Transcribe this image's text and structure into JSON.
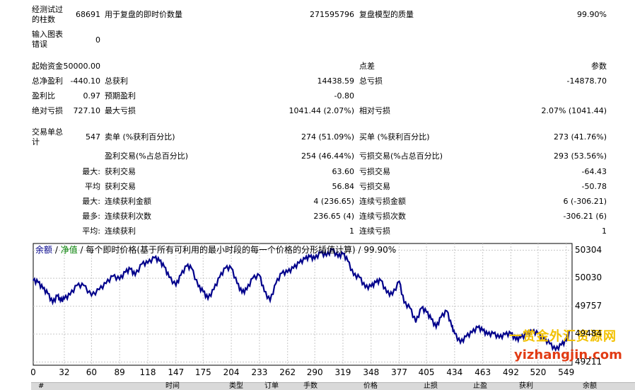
{
  "stats": [
    {
      "id": "bars_label",
      "text": "经测试过\n的柱数"
    },
    {
      "id": "bars_value",
      "text": "68691"
    },
    {
      "id": "ticks_label",
      "text": "用于复盘的即时价数量"
    },
    {
      "id": "ticks_value",
      "text": "271595796"
    },
    {
      "id": "quality_label",
      "text": "复盘模型的质量"
    },
    {
      "id": "quality_value",
      "text": "99.90%"
    },
    {
      "id": "errors_label",
      "text": "输入图表\n错误"
    },
    {
      "id": "errors_value",
      "text": "0"
    },
    {
      "id": "deposit_label",
      "text": "起始资金"
    },
    {
      "id": "deposit_value",
      "text": "50000.00"
    },
    {
      "id": "spread_label",
      "text": "点差"
    },
    {
      "id": "spread_value",
      "text": "参数"
    },
    {
      "id": "netprofit_label",
      "text": "总净盈利"
    },
    {
      "id": "netprofit_value",
      "text": "-440.10"
    },
    {
      "id": "grossprofit_label",
      "text": "总获利"
    },
    {
      "id": "grossprofit_value",
      "text": "14438.59"
    },
    {
      "id": "grossloss_label",
      "text": "总亏损"
    },
    {
      "id": "grossloss_value",
      "text": "-14878.70"
    },
    {
      "id": "pf_label",
      "text": "盈利比"
    },
    {
      "id": "pf_value",
      "text": "0.97"
    },
    {
      "id": "expected_label",
      "text": "预期盈利"
    },
    {
      "id": "expected_value",
      "text": "-0.80"
    },
    {
      "id": "absdd_label",
      "text": "绝对亏损"
    },
    {
      "id": "absdd_value",
      "text": "727.10"
    },
    {
      "id": "maxdd_label",
      "text": "最大亏损"
    },
    {
      "id": "maxdd_value",
      "text": "1041.44 (2.07%)"
    },
    {
      "id": "reldd_label",
      "text": "相对亏损"
    },
    {
      "id": "reldd_value",
      "text": "2.07% (1041.44)"
    },
    {
      "id": "trades_label",
      "text": "交易单总\n计"
    },
    {
      "id": "trades_value",
      "text": "547"
    },
    {
      "id": "short_label",
      "text": "卖单 (%获利百分比)"
    },
    {
      "id": "short_value",
      "text": "274 (51.09%)"
    },
    {
      "id": "long_label",
      "text": "买单 (%获利百分比)"
    },
    {
      "id": "long_value",
      "text": "273 (41.76%)"
    },
    {
      "id": "profittrades_label",
      "text": "盈利交易(%占总百分比)"
    },
    {
      "id": "profittrades_value",
      "text": "254 (46.44%)"
    },
    {
      "id": "losstrades_label",
      "text": "亏损交易(%占总百分比)"
    },
    {
      "id": "losstrades_value",
      "text": "293 (53.56%)"
    },
    {
      "id": "largest_head",
      "text": "最大:"
    },
    {
      "id": "largest_profit_label",
      "text": "获利交易"
    },
    {
      "id": "largest_profit_value",
      "text": "63.60"
    },
    {
      "id": "largest_loss_label",
      "text": "亏损交易"
    },
    {
      "id": "largest_loss_value",
      "text": "-64.43"
    },
    {
      "id": "avg_head",
      "text": "平均"
    },
    {
      "id": "avg_profit_label",
      "text": "获利交易"
    },
    {
      "id": "avg_profit_value",
      "text": "56.84"
    },
    {
      "id": "avg_loss_label",
      "text": "亏损交易"
    },
    {
      "id": "avg_loss_value",
      "text": "-50.78"
    },
    {
      "id": "maxcons_head",
      "text": "最大:"
    },
    {
      "id": "maxcons_win_label",
      "text": "连续获利金额"
    },
    {
      "id": "maxcons_win_value",
      "text": "4 (236.65)"
    },
    {
      "id": "maxcons_loss_label",
      "text": "连续亏损金额"
    },
    {
      "id": "maxcons_loss_value",
      "text": "6 (-306.21)"
    },
    {
      "id": "most_head",
      "text": "最多:"
    },
    {
      "id": "most_win_label",
      "text": "连续获利次数"
    },
    {
      "id": "most_win_value",
      "text": "236.65 (4)"
    },
    {
      "id": "most_loss_label",
      "text": "连续亏损次数"
    },
    {
      "id": "most_loss_value",
      "text": "-306.21 (6)"
    },
    {
      "id": "avgcons_head",
      "text": "平均:"
    },
    {
      "id": "avgcons_win_label",
      "text": "连续获利"
    },
    {
      "id": "avgcons_win_value",
      "text": "1"
    },
    {
      "id": "avgcons_loss_label",
      "text": "连续亏损"
    },
    {
      "id": "avgcons_loss_value",
      "text": "1"
    }
  ],
  "chart_title": {
    "balance": "余额",
    "sep1": " / ",
    "equity": "净值",
    "rest": " / 每个即时价格(基于所有可利用的最小时段的每一个价格的分形插值计算) / 99.90%"
  },
  "colors": {
    "balance": "#00008b",
    "equity": "#008000",
    "grid": "#c8c8c8"
  },
  "chart_data": {
    "type": "line",
    "title": "余额 / 净值 / 每个即时价格(基于所有可利用的最小时段的每一个价格的分形插值计算) / 99.90%",
    "x_ticks": [
      0,
      32,
      60,
      89,
      118,
      147,
      175,
      204,
      233,
      262,
      290,
      319,
      348,
      377,
      405,
      434,
      463,
      492,
      520,
      549
    ],
    "y_ticks": [
      50304,
      50030,
      49757,
      49484,
      49211
    ],
    "xlim": [
      0,
      555
    ],
    "ylim": [
      49180,
      50370
    ],
    "grid": true,
    "series": [
      {
        "name": "余额",
        "x": [
          0,
          5,
          10,
          15,
          20,
          25,
          28,
          32,
          38,
          45,
          52,
          60,
          68,
          75,
          82,
          89,
          95,
          100,
          105,
          112,
          118,
          125,
          130,
          135,
          140,
          147,
          152,
          158,
          163,
          170,
          175,
          180,
          186,
          192,
          198,
          204,
          210,
          215,
          220,
          226,
          233,
          238,
          244,
          250,
          256,
          262,
          268,
          274,
          280,
          285,
          290,
          296,
          302,
          308,
          314,
          319,
          324,
          330,
          336,
          342,
          348,
          353,
          358,
          364,
          370,
          377,
          382,
          388,
          394,
          400,
          405,
          410,
          415,
          420,
          426,
          431,
          434,
          440,
          446,
          452,
          458,
          463,
          468,
          474,
          480,
          486,
          492,
          497,
          502,
          508,
          514,
          520,
          526,
          532,
          538,
          544,
          549,
          553
        ],
        "y": [
          50010,
          49990,
          49930,
          49880,
          49790,
          49860,
          49810,
          49830,
          49870,
          49960,
          49960,
          49860,
          49920,
          49980,
          50050,
          50020,
          50090,
          50120,
          50060,
          50170,
          50180,
          50230,
          50200,
          50140,
          50040,
          49960,
          50060,
          50150,
          50130,
          49950,
          49900,
          49830,
          49920,
          50040,
          50130,
          50130,
          49980,
          49890,
          49920,
          50030,
          50060,
          49900,
          49810,
          49980,
          50080,
          50090,
          50130,
          50180,
          50220,
          50240,
          50220,
          50280,
          50250,
          50310,
          50240,
          50270,
          50200,
          50060,
          50040,
          49940,
          49950,
          49990,
          50010,
          49890,
          49870,
          50000,
          49790,
          49740,
          49600,
          49740,
          49700,
          49630,
          49550,
          49650,
          49710,
          49560,
          49490,
          49400,
          49460,
          49500,
          49550,
          49520,
          49480,
          49490,
          49450,
          49480,
          49490,
          49430,
          49450,
          49480,
          49510,
          49490,
          49440,
          49390,
          49330,
          49380,
          49420,
          49520
        ]
      }
    ]
  },
  "watermark": {
    "line1": "一赏金外汇资源网",
    "line2": "yizhangjin.com"
  },
  "table_headers": [
    "#",
    "时间",
    "类型",
    "订单",
    "手数",
    "价格",
    "止损",
    "止盈",
    "获利",
    "余额"
  ]
}
